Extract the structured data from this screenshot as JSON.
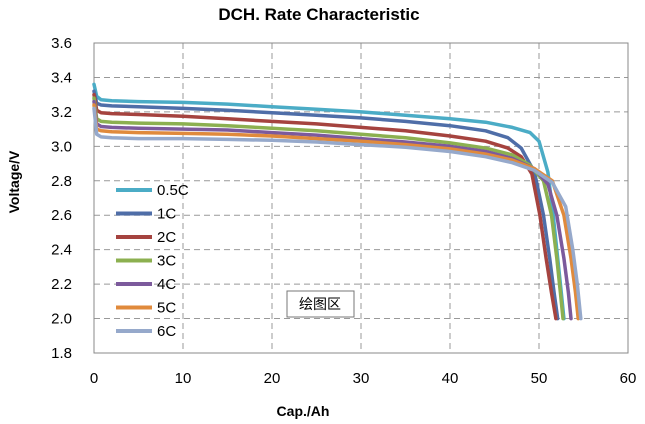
{
  "chart_data": {
    "type": "line",
    "title": "DCH. Rate Characteristic",
    "xlabel": "Cap./Ah",
    "ylabel": "Voltage/V",
    "xlim": [
      0,
      60
    ],
    "ylim": [
      1.8,
      3.6
    ],
    "xticks": [
      "0",
      "10",
      "20",
      "30",
      "40",
      "50",
      "60"
    ],
    "yticks": [
      "1.8",
      "2.0",
      "2.2",
      "2.4",
      "2.6",
      "2.8",
      "3.0",
      "3.2",
      "3.4",
      "3.6"
    ],
    "grid": true,
    "legend_position": "left",
    "annotation": "绘图区",
    "series": [
      {
        "name": "0.5C",
        "color": "#4BACC6",
        "points": [
          [
            0,
            3.36
          ],
          [
            0.3,
            3.29
          ],
          [
            0.8,
            3.27
          ],
          [
            2,
            3.265
          ],
          [
            5,
            3.26
          ],
          [
            10,
            3.255
          ],
          [
            15,
            3.245
          ],
          [
            20,
            3.23
          ],
          [
            25,
            3.215
          ],
          [
            30,
            3.2
          ],
          [
            35,
            3.18
          ],
          [
            40,
            3.16
          ],
          [
            44,
            3.14
          ],
          [
            47,
            3.11
          ],
          [
            49,
            3.08
          ],
          [
            50,
            3.03
          ],
          [
            51,
            2.85
          ],
          [
            51.6,
            2.6
          ],
          [
            52.1,
            2.35
          ],
          [
            52.5,
            2.15
          ],
          [
            52.8,
            2.0
          ]
        ]
      },
      {
        "name": "1C",
        "color": "#4F6EA8",
        "points": [
          [
            0,
            3.32
          ],
          [
            0.3,
            3.25
          ],
          [
            0.8,
            3.24
          ],
          [
            2,
            3.235
          ],
          [
            5,
            3.23
          ],
          [
            10,
            3.22
          ],
          [
            15,
            3.21
          ],
          [
            20,
            3.195
          ],
          [
            25,
            3.18
          ],
          [
            30,
            3.165
          ],
          [
            35,
            3.145
          ],
          [
            40,
            3.12
          ],
          [
            44,
            3.09
          ],
          [
            46.5,
            3.05
          ],
          [
            48,
            2.99
          ],
          [
            49.5,
            2.85
          ],
          [
            50.5,
            2.6
          ],
          [
            51.2,
            2.35
          ],
          [
            51.7,
            2.15
          ],
          [
            52.1,
            2.0
          ]
        ]
      },
      {
        "name": "2C",
        "color": "#A5433F",
        "points": [
          [
            0,
            3.3
          ],
          [
            0.3,
            3.21
          ],
          [
            0.8,
            3.195
          ],
          [
            2,
            3.19
          ],
          [
            5,
            3.185
          ],
          [
            10,
            3.175
          ],
          [
            15,
            3.16
          ],
          [
            20,
            3.145
          ],
          [
            25,
            3.13
          ],
          [
            30,
            3.11
          ],
          [
            35,
            3.09
          ],
          [
            40,
            3.06
          ],
          [
            44,
            3.03
          ],
          [
            46.5,
            2.99
          ],
          [
            48,
            2.94
          ],
          [
            49.2,
            2.84
          ],
          [
            50.1,
            2.6
          ],
          [
            50.8,
            2.35
          ],
          [
            51.4,
            2.15
          ],
          [
            51.9,
            2.0
          ]
        ]
      },
      {
        "name": "3C",
        "color": "#8CB050",
        "points": [
          [
            0,
            3.28
          ],
          [
            0.3,
            3.16
          ],
          [
            0.8,
            3.145
          ],
          [
            2,
            3.14
          ],
          [
            5,
            3.135
          ],
          [
            10,
            3.13
          ],
          [
            15,
            3.12
          ],
          [
            20,
            3.105
          ],
          [
            25,
            3.09
          ],
          [
            30,
            3.07
          ],
          [
            35,
            3.05
          ],
          [
            40,
            3.02
          ],
          [
            44,
            2.99
          ],
          [
            47,
            2.95
          ],
          [
            49,
            2.89
          ],
          [
            50.5,
            2.8
          ],
          [
            51.4,
            2.6
          ],
          [
            52,
            2.35
          ],
          [
            52.4,
            2.15
          ],
          [
            52.7,
            2.0
          ]
        ]
      },
      {
        "name": "4C",
        "color": "#7C5A9C",
        "points": [
          [
            0,
            3.26
          ],
          [
            0.3,
            3.13
          ],
          [
            0.8,
            3.115
          ],
          [
            2,
            3.11
          ],
          [
            5,
            3.105
          ],
          [
            10,
            3.1
          ],
          [
            15,
            3.095
          ],
          [
            20,
            3.08
          ],
          [
            25,
            3.065
          ],
          [
            30,
            3.045
          ],
          [
            35,
            3.025
          ],
          [
            40,
            3.0
          ],
          [
            44,
            2.97
          ],
          [
            47,
            2.93
          ],
          [
            49.5,
            2.87
          ],
          [
            51,
            2.78
          ],
          [
            52,
            2.6
          ],
          [
            52.8,
            2.35
          ],
          [
            53.3,
            2.15
          ],
          [
            53.6,
            2.0
          ]
        ]
      },
      {
        "name": "5C",
        "color": "#E08A3C",
        "points": [
          [
            0,
            3.24
          ],
          [
            0.3,
            3.1
          ],
          [
            0.8,
            3.09
          ],
          [
            2,
            3.085
          ],
          [
            5,
            3.08
          ],
          [
            10,
            3.075
          ],
          [
            15,
            3.07
          ],
          [
            20,
            3.06
          ],
          [
            25,
            3.045
          ],
          [
            30,
            3.03
          ],
          [
            35,
            3.01
          ],
          [
            40,
            2.985
          ],
          [
            44,
            2.955
          ],
          [
            47,
            2.92
          ],
          [
            49.5,
            2.87
          ],
          [
            51.5,
            2.8
          ],
          [
            52.8,
            2.6
          ],
          [
            53.6,
            2.35
          ],
          [
            54.1,
            2.15
          ],
          [
            54.4,
            2.0
          ]
        ]
      },
      {
        "name": "6C",
        "color": "#96A9CB",
        "points": [
          [
            0,
            3.22
          ],
          [
            0.3,
            3.07
          ],
          [
            0.8,
            3.055
          ],
          [
            2,
            3.05
          ],
          [
            5,
            3.045
          ],
          [
            10,
            3.045
          ],
          [
            15,
            3.04
          ],
          [
            20,
            3.035
          ],
          [
            25,
            3.025
          ],
          [
            30,
            3.01
          ],
          [
            35,
            2.995
          ],
          [
            40,
            2.97
          ],
          [
            44,
            2.94
          ],
          [
            47,
            2.905
          ],
          [
            49.5,
            2.86
          ],
          [
            51.5,
            2.79
          ],
          [
            53,
            2.65
          ],
          [
            53.8,
            2.4
          ],
          [
            54.3,
            2.2
          ],
          [
            54.7,
            2.0
          ]
        ]
      }
    ]
  }
}
